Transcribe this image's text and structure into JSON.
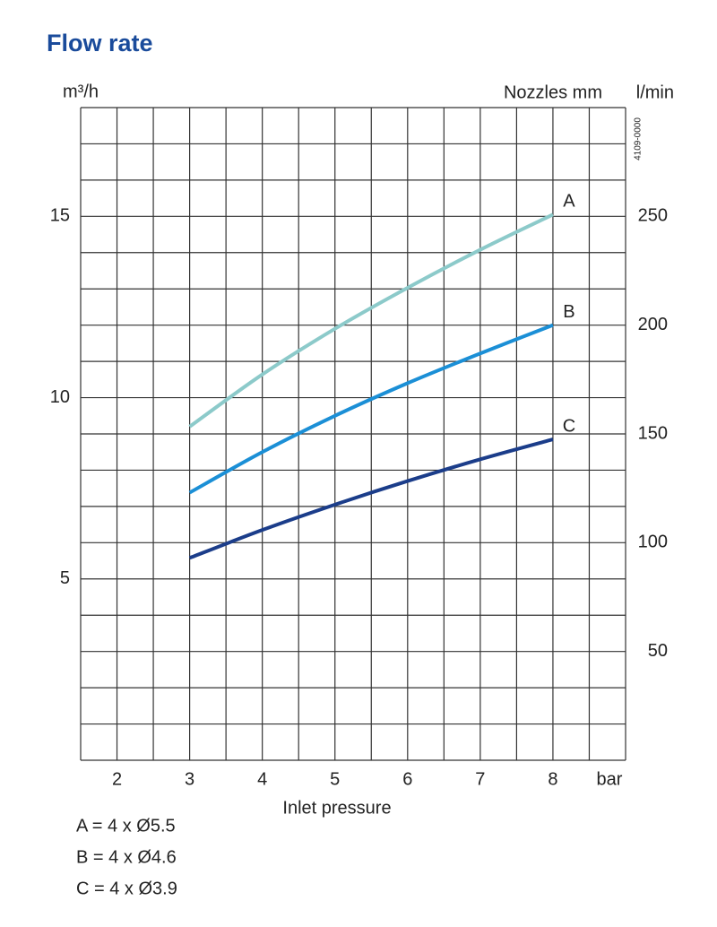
{
  "chart_data": {
    "type": "line",
    "title": "Flow rate",
    "ylabel": "m³/h",
    "y2label": "l/min",
    "legend_title": "Nozzles mm",
    "code": "4109-0000",
    "xunit": "bar",
    "xlabel": "Inlet pressure",
    "x": [
      3,
      4,
      5,
      6,
      7,
      8
    ],
    "series": [
      {
        "name": "A",
        "color": "#8ccaca",
        "values": [
          9.2,
          10.64,
          11.9,
          13.03,
          14.08,
          15.05
        ]
      },
      {
        "name": "B",
        "color": "#1b8fd6",
        "values": [
          7.38,
          8.5,
          9.5,
          10.4,
          11.22,
          12.0
        ]
      },
      {
        "name": "C",
        "color": "#1b3d8a",
        "values": [
          5.58,
          6.35,
          7.05,
          7.7,
          8.3,
          8.85
        ]
      }
    ],
    "legend": [
      "A = 4 x Ø5.5",
      "B = 4 x Ø4.6",
      "C = 4 x Ø3.9"
    ],
    "xlim": [
      1.5,
      9
    ],
    "xticks": [
      2,
      3,
      4,
      5,
      6,
      7,
      8
    ],
    "ylim": [
      0,
      18
    ],
    "yticks": [
      5,
      10,
      15
    ],
    "y2lim": [
      0,
      300
    ],
    "y2ticks": [
      50,
      100,
      150,
      200,
      250
    ],
    "xgrid": [
      1.5,
      2,
      2.5,
      3,
      3.5,
      4,
      4.5,
      5,
      5.5,
      6,
      6.5,
      7,
      7.5,
      8,
      8.5,
      9
    ],
    "ygrid": [
      0,
      1,
      2,
      3,
      4,
      5,
      6,
      7,
      8,
      9,
      10,
      11,
      12,
      13,
      14,
      15,
      16,
      17,
      18
    ]
  }
}
